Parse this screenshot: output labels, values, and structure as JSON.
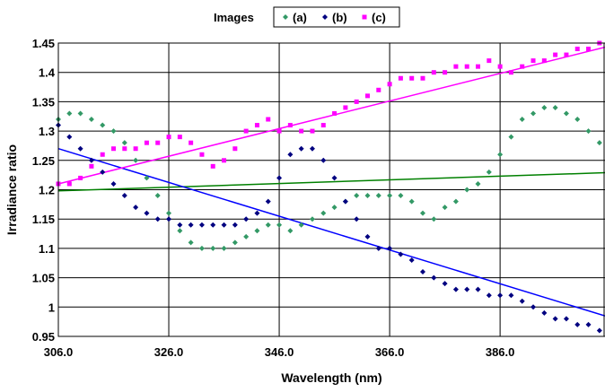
{
  "chart_data": {
    "type": "scatter",
    "title": "",
    "xlabel": "Wavelength (nm)",
    "ylabel": "Irradiance ratio",
    "xlim": [
      306,
      405
    ],
    "ylim": [
      0.95,
      1.45
    ],
    "x_ticks": [
      "306.0",
      "326.0",
      "346.0",
      "366.0",
      "386.0"
    ],
    "y_ticks": [
      "0.95",
      "1",
      "1.05",
      "1.1",
      "1.15",
      "1.2",
      "1.25",
      "1.3",
      "1.35",
      "1.4",
      "1.45"
    ],
    "grid": true,
    "legend": {
      "title": "Images",
      "placement": "top"
    },
    "series": [
      {
        "name": "(a)",
        "color": "#339966",
        "marker": "diamond",
        "trendline": {
          "x": [
            306,
            405
          ],
          "y": [
            1.198,
            1.229
          ],
          "color": "#008000"
        },
        "x": [
          306,
          308,
          310,
          312,
          314,
          316,
          318,
          320,
          322,
          324,
          326,
          328,
          330,
          332,
          334,
          336,
          338,
          340,
          342,
          344,
          346,
          348,
          350,
          352,
          354,
          356,
          358,
          360,
          362,
          364,
          366,
          368,
          370,
          372,
          374,
          376,
          378,
          380,
          382,
          384,
          386,
          388,
          390,
          392,
          394,
          396,
          398,
          400,
          402,
          404
        ],
        "y": [
          1.32,
          1.33,
          1.33,
          1.32,
          1.31,
          1.3,
          1.28,
          1.25,
          1.22,
          1.19,
          1.16,
          1.13,
          1.11,
          1.1,
          1.1,
          1.1,
          1.11,
          1.12,
          1.13,
          1.14,
          1.14,
          1.13,
          1.14,
          1.15,
          1.16,
          1.17,
          1.18,
          1.19,
          1.19,
          1.19,
          1.19,
          1.19,
          1.18,
          1.16,
          1.15,
          1.17,
          1.18,
          1.2,
          1.21,
          1.23,
          1.26,
          1.29,
          1.32,
          1.33,
          1.34,
          1.34,
          1.33,
          1.32,
          1.3,
          1.28
        ]
      },
      {
        "name": "(b)",
        "color": "#000080",
        "marker": "diamond",
        "trendline": {
          "x": [
            306,
            405
          ],
          "y": [
            1.27,
            0.985
          ],
          "color": "#0000ff"
        },
        "x": [
          306,
          308,
          310,
          312,
          314,
          316,
          318,
          320,
          322,
          324,
          326,
          328,
          330,
          332,
          334,
          336,
          338,
          340,
          342,
          344,
          346,
          348,
          350,
          352,
          354,
          356,
          358,
          360,
          362,
          364,
          366,
          368,
          370,
          372,
          374,
          376,
          378,
          380,
          382,
          384,
          386,
          388,
          390,
          392,
          394,
          396,
          398,
          400,
          402,
          404
        ],
        "y": [
          1.31,
          1.29,
          1.27,
          1.25,
          1.23,
          1.21,
          1.19,
          1.17,
          1.16,
          1.15,
          1.15,
          1.14,
          1.14,
          1.14,
          1.14,
          1.14,
          1.14,
          1.15,
          1.16,
          1.18,
          1.22,
          1.26,
          1.27,
          1.27,
          1.25,
          1.22,
          1.18,
          1.15,
          1.12,
          1.1,
          1.1,
          1.09,
          1.08,
          1.06,
          1.05,
          1.04,
          1.03,
          1.03,
          1.03,
          1.02,
          1.02,
          1.02,
          1.01,
          1.0,
          0.99,
          0.98,
          0.98,
          0.97,
          0.97,
          0.96
        ]
      },
      {
        "name": "(c)",
        "color": "#ff00ff",
        "marker": "square",
        "trendline": {
          "x": [
            306,
            405
          ],
          "y": [
            1.21,
            1.443
          ],
          "color": "#ff00ff"
        },
        "x": [
          306,
          308,
          310,
          312,
          314,
          316,
          318,
          320,
          322,
          324,
          326,
          328,
          330,
          332,
          334,
          336,
          338,
          340,
          342,
          344,
          346,
          348,
          350,
          352,
          354,
          356,
          358,
          360,
          362,
          364,
          366,
          368,
          370,
          372,
          374,
          376,
          378,
          380,
          382,
          384,
          386,
          388,
          390,
          392,
          394,
          396,
          398,
          400,
          402,
          404
        ],
        "y": [
          1.21,
          1.21,
          1.22,
          1.24,
          1.26,
          1.27,
          1.27,
          1.27,
          1.28,
          1.28,
          1.29,
          1.29,
          1.28,
          1.26,
          1.24,
          1.25,
          1.27,
          1.3,
          1.31,
          1.32,
          1.3,
          1.31,
          1.3,
          1.3,
          1.31,
          1.33,
          1.34,
          1.35,
          1.36,
          1.37,
          1.38,
          1.39,
          1.39,
          1.39,
          1.4,
          1.4,
          1.41,
          1.41,
          1.41,
          1.42,
          1.41,
          1.4,
          1.41,
          1.42,
          1.42,
          1.43,
          1.43,
          1.44,
          1.44,
          1.45
        ]
      }
    ]
  }
}
